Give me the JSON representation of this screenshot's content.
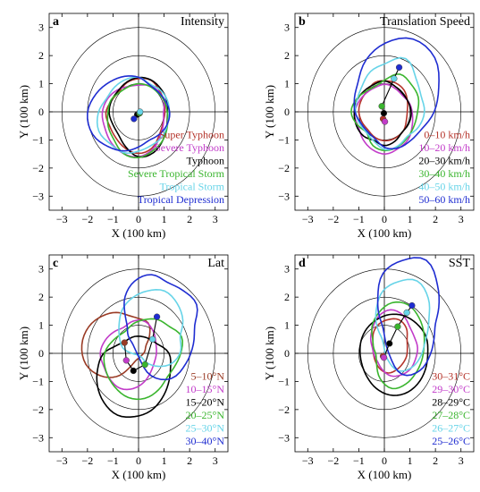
{
  "chart_data": [
    {
      "type": "line",
      "panel_label": "a",
      "title": "Intensity",
      "xlabel": "X (100 km)",
      "ylabel": "Y (100 km)",
      "xlim": [
        -3.5,
        3.5
      ],
      "ylim": [
        -3.5,
        3.5
      ],
      "ticks": [
        -3,
        -2,
        -1,
        0,
        1,
        2,
        3
      ],
      "range_rings": [
        1,
        2,
        3
      ],
      "grid": false,
      "legend_position": "bottom-right",
      "series": [
        {
          "name": "Super Typhoon",
          "color": "#b5342b",
          "radius": [
            1.03,
            1.08,
            1.15,
            1.27,
            1.23,
            1.18,
            1.08,
            1.15,
            1.28,
            1.22,
            1.25,
            1.35,
            1.43,
            1.35,
            1.13,
            1.02
          ],
          "center": [
            0.0,
            -0.05
          ]
        },
        {
          "name": "Severe Typhoon",
          "color": "#c23cc9",
          "radius": [
            0.98,
            1.07,
            1.1,
            1.07,
            1.0,
            1.03,
            1.17,
            1.32,
            1.42,
            1.42,
            1.5,
            1.55,
            1.55,
            1.4,
            1.18,
            1.05
          ],
          "center": [
            0.0,
            -0.05
          ]
        },
        {
          "name": "Typhoon",
          "color": "#000000",
          "radius": [
            1.13,
            1.2,
            1.23,
            1.28,
            1.27,
            1.2,
            1.13,
            1.15,
            1.15,
            1.08,
            1.1,
            1.3,
            1.55,
            1.52,
            1.35,
            1.2
          ],
          "center": [
            0.0,
            -0.05
          ]
        },
        {
          "name": "Severe Tropical Storm",
          "color": "#3ab52e",
          "radius": [
            1.13,
            1.1,
            1.05,
            1.05,
            1.05,
            1.02,
            1.05,
            1.18,
            1.2,
            1.28,
            1.35,
            1.55,
            1.58,
            1.45,
            1.35,
            1.22
          ],
          "center": [
            0.0,
            -0.05
          ]
        },
        {
          "name": "Tropical Storm",
          "color": "#67d4e8",
          "radius": [
            1.2,
            1.22,
            1.18,
            1.13,
            1.28,
            1.3,
            1.32,
            1.36,
            1.58,
            1.68,
            1.55,
            1.52,
            1.35,
            1.25,
            1.25,
            1.2
          ],
          "center": [
            0.0,
            -0.05
          ]
        },
        {
          "name": "Tropical Depression",
          "color": "#1f2dd1",
          "radius": [
            1.22,
            1.14,
            1.08,
            1.1,
            1.28,
            1.42,
            1.58,
            1.8,
            2.0,
            1.95,
            1.68,
            1.45,
            1.2,
            1.05,
            1.1,
            1.18
          ],
          "center": [
            0.0,
            -0.05
          ]
        }
      ],
      "centers": {
        "x": [
          0.02,
          0.04,
          -0.05,
          0.04,
          0.06,
          -0.18
        ],
        "y": [
          -0.05,
          -0.05,
          -0.1,
          -0.05,
          0.0,
          -0.25
        ]
      }
    },
    {
      "type": "line",
      "panel_label": "b",
      "title": "Translation Speed",
      "xlabel": "X (100 km)",
      "ylabel": "Y (100 km)",
      "xlim": [
        -3.5,
        3.5
      ],
      "ylim": [
        -3.5,
        3.5
      ],
      "ticks": [
        -3,
        -2,
        -1,
        0,
        1,
        2,
        3
      ],
      "range_rings": [
        1,
        2,
        3
      ],
      "grid": false,
      "legend_position": "bottom-right",
      "series": [
        {
          "name": "0–10 km/h",
          "color": "#b5342b",
          "radius": [
            0.85,
            0.92,
            1.02,
            1.05,
            1.05,
            1.08,
            1.0,
            1.02,
            1.05,
            1.02,
            0.98,
            1.05,
            1.08,
            1.05,
            1.0,
            0.88
          ],
          "center": [
            0.05,
            0.05
          ]
        },
        {
          "name": "10–20 km/h",
          "color": "#c23cc9",
          "radius": [
            1.05,
            1.02,
            0.95,
            1.0,
            1.08,
            1.05,
            1.08,
            1.15,
            1.22,
            1.15,
            1.25,
            1.35,
            1.4,
            1.3,
            1.25,
            1.12
          ],
          "center": [
            0.05,
            -0.1
          ]
        },
        {
          "name": "20–30 km/h",
          "color": "#000000",
          "radius": [
            1.05,
            1.02,
            1.0,
            1.05,
            1.15,
            1.1,
            1.12,
            1.17,
            1.18,
            1.18,
            1.15,
            1.05,
            1.15,
            1.08,
            0.97,
            1.02
          ],
          "center": [
            0.0,
            -0.05
          ]
        },
        {
          "name": "30–40 km/h",
          "color": "#3ab52e",
          "radius": [
            1.25,
            1.38,
            1.4,
            1.45,
            1.15,
            1.0,
            1.05,
            1.22,
            1.35,
            1.2,
            1.05,
            1.3,
            1.38,
            1.32,
            1.25,
            1.22
          ],
          "center": [
            0.05,
            0.0
          ]
        },
        {
          "name": "40–50 km/h",
          "color": "#67d4e8",
          "radius": [
            1.52,
            1.5,
            1.68,
            2.05,
            1.72,
            1.55,
            1.3,
            1.2,
            1.18,
            1.1,
            1.05,
            1.15,
            1.35,
            1.3,
            1.22,
            1.4
          ],
          "center": [
            0.05,
            0.0
          ]
        },
        {
          "name": "50–60 km/h",
          "color": "#1f2dd1",
          "radius": [
            1.9,
            2.25,
            2.72,
            2.8,
            2.45,
            2.0,
            1.52,
            1.32,
            1.2,
            1.05,
            1.0,
            1.05,
            1.28,
            1.38,
            1.42,
            1.55
          ],
          "center": [
            0.05,
            0.0
          ]
        }
      ],
      "centers": {
        "x": [
          -0.05,
          0.02,
          -0.02,
          -0.1,
          0.38,
          0.58
        ],
        "y": [
          -0.25,
          -0.35,
          -0.05,
          0.2,
          1.18,
          1.58
        ]
      }
    },
    {
      "type": "line",
      "panel_label": "c",
      "title": "Lat",
      "xlabel": "X (100 km)",
      "ylabel": "Y (100 km)",
      "xlim": [
        -3.5,
        3.5
      ],
      "ylim": [
        -3.5,
        3.5
      ],
      "ticks": [
        -3,
        -2,
        -1,
        0,
        1,
        2,
        3
      ],
      "range_rings": [
        1,
        2,
        3
      ],
      "grid": false,
      "legend_position": "bottom-right",
      "series": [
        {
          "name": "5–10°N",
          "color": "#9a3b25",
          "radius": [
            0.7,
            0.9,
            1.1,
            1.02,
            1.05,
            1.25,
            1.45,
            1.68,
            1.82,
            1.8,
            1.55,
            1.22,
            0.85,
            0.65,
            0.62,
            0.68
          ],
          "center": [
            -0.4,
            0.3
          ]
        },
        {
          "name": "10–15°N",
          "color": "#c23cc9",
          "radius": [
            0.9,
            0.95,
            1.1,
            1.22,
            1.15,
            1.0,
            1.08,
            1.2,
            1.3,
            1.25,
            1.3,
            1.35,
            1.25,
            1.1,
            0.95,
            0.88
          ],
          "center": [
            -0.2,
            0.0
          ]
        },
        {
          "name": "15–20°N",
          "color": "#000000",
          "radius": [
            1.4,
            1.45,
            1.25,
            1.2,
            1.15,
            1.05,
            1.12,
            1.35,
            1.45,
            1.58,
            1.7,
            1.78,
            1.7,
            1.62,
            1.5,
            1.42
          ],
          "center": [
            -0.15,
            -0.55
          ]
        },
        {
          "name": "20–25°N",
          "color": "#3ab52e",
          "radius": [
            1.4,
            1.55,
            1.35,
            1.3,
            1.2,
            1.15,
            1.1,
            1.3,
            1.58,
            1.65,
            1.68,
            1.7,
            1.6,
            1.4,
            1.22,
            1.25
          ],
          "center": [
            0.25,
            0.0
          ]
        },
        {
          "name": "25–30°N",
          "color": "#67d4e8",
          "radius": [
            1.28,
            1.5,
            1.65,
            1.75,
            1.62,
            1.5,
            1.38,
            1.2,
            1.1,
            1.05,
            0.85,
            0.75,
            0.95,
            1.15,
            1.35,
            1.4
          ],
          "center": [
            0.35,
            0.6
          ]
        },
        {
          "name": "30–40°N",
          "color": "#1f2dd1",
          "radius": [
            1.7,
            1.92,
            1.75,
            1.65,
            1.8,
            1.7,
            1.45,
            1.12,
            0.95,
            0.98,
            1.0,
            1.25,
            1.8,
            2.05,
            1.92,
            1.78
          ],
          "center": [
            0.5,
            1.0
          ]
        }
      ],
      "centers": {
        "x": [
          -0.55,
          -0.48,
          -0.2,
          0.25,
          0.55,
          0.72
        ],
        "y": [
          0.38,
          -0.25,
          -0.62,
          -0.4,
          0.5,
          1.3
        ]
      }
    },
    {
      "type": "line",
      "panel_label": "d",
      "title": "SST",
      "xlabel": "X (100 km)",
      "ylabel": "Y (100 km)",
      "xlim": [
        -3.5,
        3.5
      ],
      "ylim": [
        -3.5,
        3.5
      ],
      "ticks": [
        -3,
        -2,
        -1,
        0,
        1,
        2,
        3
      ],
      "range_rings": [
        1,
        2,
        3
      ],
      "grid": false,
      "legend_position": "bottom-right",
      "series": [
        {
          "name": "30–31°C",
          "color": "#b5342b",
          "radius": [
            0.75,
            0.8,
            1.0,
            1.08,
            1.0,
            0.92,
            0.8,
            0.65,
            0.6,
            0.62,
            0.7,
            0.82,
            0.9,
            0.85,
            0.8,
            0.78
          ],
          "center": [
            0.15,
            0.2
          ]
        },
        {
          "name": "29–30°C",
          "color": "#c23cc9",
          "radius": [
            1.05,
            1.0,
            1.05,
            1.25,
            1.35,
            1.22,
            1.0,
            0.85,
            0.72,
            0.7,
            0.72,
            0.85,
            1.0,
            1.05,
            1.08,
            1.05
          ],
          "center": [
            0.25,
            0.2
          ]
        },
        {
          "name": "28–29°C",
          "color": "#000000",
          "radius": [
            1.5,
            1.55,
            1.5,
            1.45,
            1.38,
            1.3,
            1.25,
            1.2,
            1.15,
            1.15,
            1.22,
            1.35,
            1.48,
            1.55,
            1.55,
            1.52
          ],
          "center": [
            0.2,
            0.0
          ]
        },
        {
          "name": "27–28°C",
          "color": "#3ab52e",
          "radius": [
            1.25,
            1.35,
            1.5,
            1.65,
            1.6,
            1.35,
            1.1,
            0.82,
            0.72,
            0.68,
            0.85,
            1.2,
            1.45,
            1.4,
            1.3,
            1.25
          ],
          "center": [
            0.3,
            0.2
          ]
        },
        {
          "name": "26–27°C",
          "color": "#67d4e8",
          "radius": [
            1.15,
            1.3,
            1.65,
            1.92,
            1.75,
            1.55,
            1.2,
            0.95,
            0.78,
            0.7,
            0.8,
            1.1,
            1.42,
            1.4,
            1.25,
            1.12
          ],
          "center": [
            0.55,
            0.8
          ]
        },
        {
          "name": "25–26°C",
          "color": "#1f2dd1",
          "radius": [
            1.3,
            1.55,
            1.95,
            2.45,
            2.25,
            1.95,
            1.35,
            1.0,
            0.8,
            0.78,
            0.92,
            1.25,
            1.8,
            1.8,
            1.55,
            1.35
          ],
          "center": [
            0.7,
            1.05
          ]
        }
      ],
      "centers": {
        "x": [
          -0.05,
          -0.02,
          0.2,
          0.52,
          0.88,
          1.08
        ],
        "y": [
          -0.1,
          -0.15,
          0.35,
          0.95,
          1.45,
          1.7
        ]
      }
    }
  ]
}
